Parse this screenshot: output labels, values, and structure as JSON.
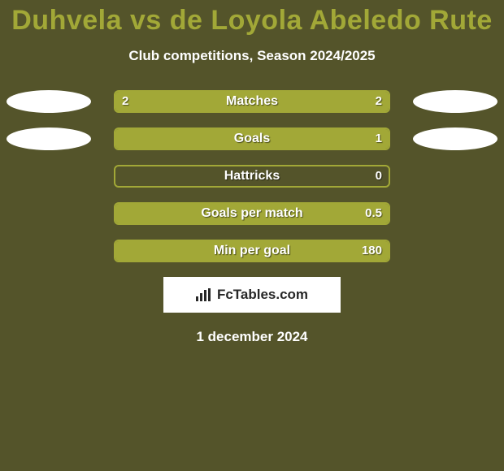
{
  "background_color": "#54542a",
  "title": {
    "text": "Duhvela vs de Loyola Abeledo Rute",
    "color": "#a2a837"
  },
  "subtitle": {
    "text": "Club competitions, Season 2024/2025",
    "color": "#ffffff"
  },
  "oval_color": "#ffffff",
  "bar_track_color": "#54542a",
  "bar_border_color": "#a2a837",
  "bar_fill_color": "#a2a837",
  "value_color": "#ffffff",
  "label_color": "#ffffff",
  "stats": [
    {
      "label": "Matches",
      "left_val": "2",
      "right_val": "2",
      "left_pct": 50,
      "right_pct": 50,
      "left_oval": true,
      "right_oval": true
    },
    {
      "label": "Goals",
      "left_val": "",
      "right_val": "1",
      "left_pct": 0,
      "right_pct": 100,
      "left_oval": true,
      "right_oval": true
    },
    {
      "label": "Hattricks",
      "left_val": "",
      "right_val": "0",
      "left_pct": 0,
      "right_pct": 0,
      "left_oval": false,
      "right_oval": false
    },
    {
      "label": "Goals per match",
      "left_val": "",
      "right_val": "0.5",
      "left_pct": 0,
      "right_pct": 100,
      "left_oval": false,
      "right_oval": false
    },
    {
      "label": "Min per goal",
      "left_val": "",
      "right_val": "180",
      "left_pct": 0,
      "right_pct": 100,
      "left_oval": false,
      "right_oval": false
    }
  ],
  "logo": {
    "text": "FcTables.com",
    "bg": "#ffffff",
    "color": "#272727"
  },
  "date": {
    "text": "1 december 2024",
    "color": "#ffffff"
  }
}
